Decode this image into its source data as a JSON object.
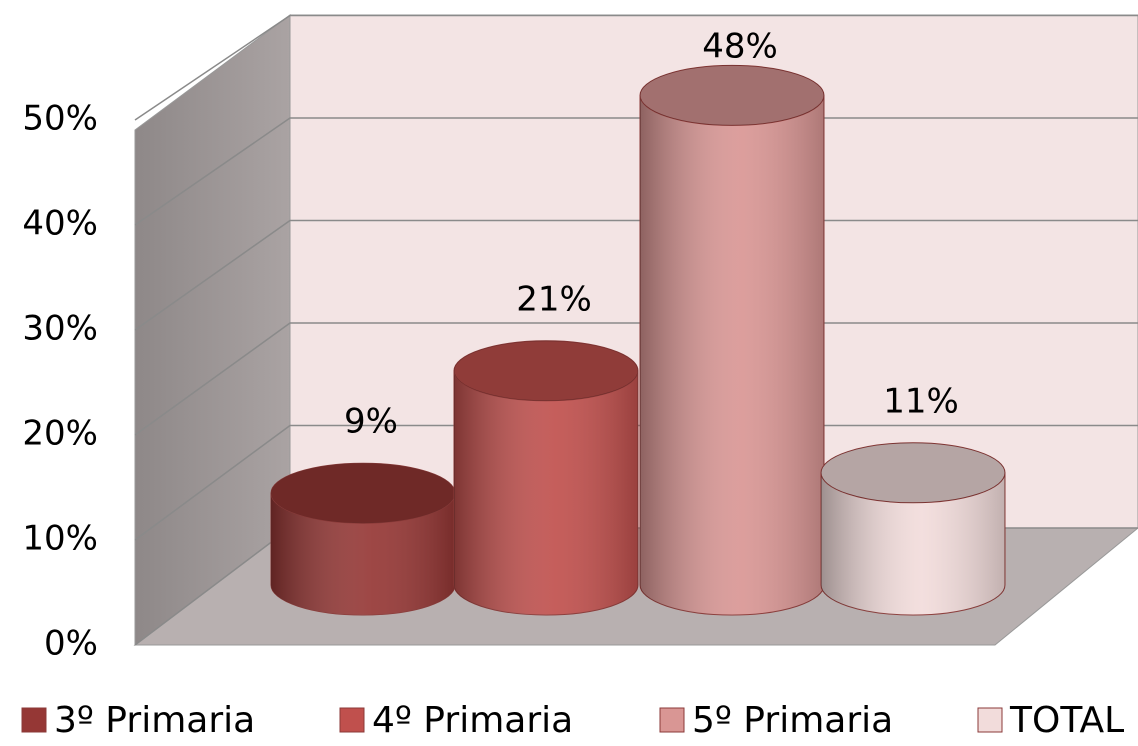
{
  "chart_data": {
    "type": "bar3d",
    "categories": [
      null
    ],
    "series": [
      {
        "name": "3º Primaria",
        "color": "#953735",
        "values": [
          9
        ],
        "value_labels": [
          "9%"
        ]
      },
      {
        "name": "4º Primaria",
        "color": "#c0504d",
        "values": [
          21
        ],
        "value_labels": [
          "21%"
        ]
      },
      {
        "name": "5º Primaria",
        "color": "#d99694",
        "values": [
          48
        ],
        "value_labels": [
          "48%"
        ]
      },
      {
        "name": "TOTAL",
        "color": "#f2dcdb",
        "values": [
          11
        ],
        "value_labels": [
          "11%"
        ]
      }
    ],
    "ylim": [
      0,
      60
    ],
    "yticks": [
      {
        "value": 0,
        "label": "0%"
      },
      {
        "value": 10,
        "label": "10%"
      },
      {
        "value": 20,
        "label": "20%"
      },
      {
        "value": 30,
        "label": "30%"
      },
      {
        "value": 40,
        "label": "40%"
      },
      {
        "value": 50,
        "label": "50%"
      }
    ],
    "grid": true,
    "legend": "bottom"
  }
}
